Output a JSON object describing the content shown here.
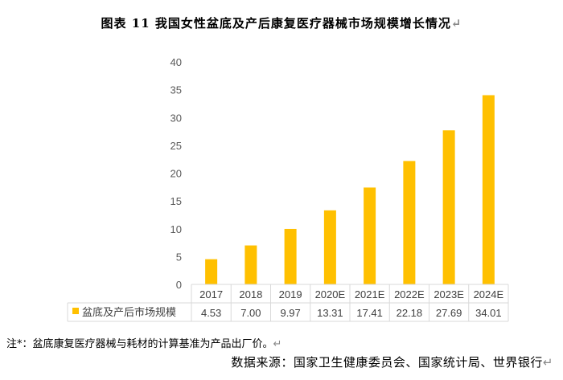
{
  "title": "图表 11   我国女性盆底及产后康复医疗器械市场规模增长情况",
  "chart_data": {
    "type": "bar",
    "categories": [
      "2017",
      "2018",
      "2019",
      "2020E",
      "2021E",
      "2022E",
      "2023E",
      "2024E"
    ],
    "series": [
      {
        "name": "盆底及产后市场规模",
        "values": [
          4.53,
          7.0,
          9.97,
          13.31,
          17.41,
          22.18,
          27.69,
          34.01
        ]
      }
    ],
    "value_labels": [
      "4.53",
      "7.00",
      "9.97",
      "13.31",
      "17.41",
      "22.18",
      "27.69",
      "34.01"
    ],
    "ylim": [
      0,
      40
    ],
    "yticks": [
      0,
      5,
      10,
      15,
      20,
      25,
      30,
      35,
      40
    ],
    "grid": false,
    "legend": "data-table-left",
    "bar_color": "#FFC000"
  },
  "note": "注*：盆底康复医疗器械与耗材的计算基准为产品出厂价。",
  "source": "数据来源：国家卫生健康委员会、国家统计局、世界银行",
  "return_mark": "↵"
}
